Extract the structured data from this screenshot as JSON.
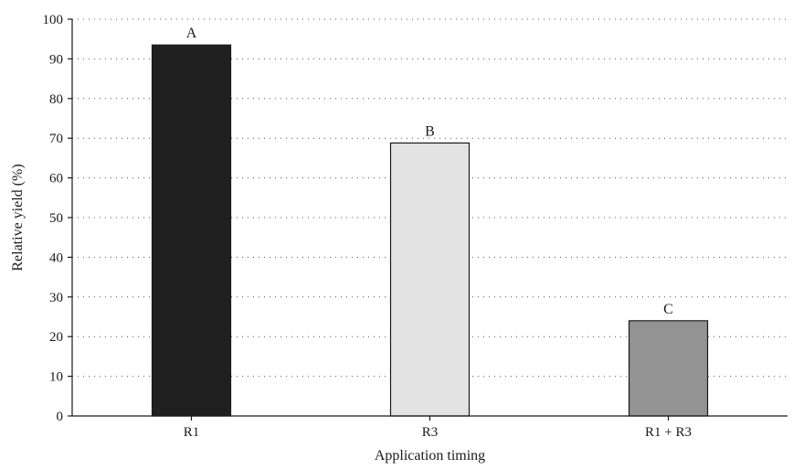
{
  "chart_data": {
    "type": "bar",
    "categories": [
      "R1",
      "R3",
      "R1 + R3"
    ],
    "values": [
      93.5,
      68.8,
      24.0
    ],
    "bar_labels": [
      "A",
      "B",
      "C"
    ],
    "bar_colors": [
      "#202020",
      "#e3e3e3",
      "#939393"
    ],
    "xlabel": "Application timing",
    "ylabel": "Relative yield (%)",
    "ylim": [
      0,
      100
    ],
    "yticks": [
      0,
      10,
      20,
      30,
      40,
      50,
      60,
      70,
      80,
      90,
      100
    ],
    "grid": true
  }
}
